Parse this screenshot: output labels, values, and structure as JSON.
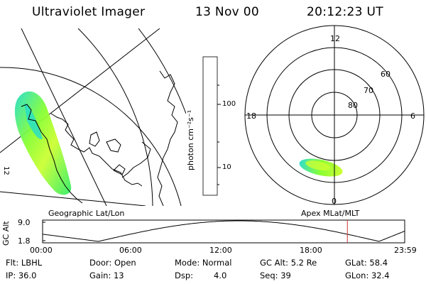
{
  "header": {
    "instrument": "Ultraviolet Imager",
    "date": "13 Nov 00",
    "time": "20:12:23 UT"
  },
  "left_map": {
    "caption": "Geographic Lat/Lon",
    "mark": "12"
  },
  "colorbar": {
    "label": "photon cm⁻²s⁻¹",
    "ticks": [
      "100",
      "10"
    ],
    "colors": [
      "#000000",
      "#2a0033",
      "#55006a",
      "#8b0030",
      "#cc0000",
      "#ff3300",
      "#ff8800",
      "#ffcc00",
      "#ffff33",
      "#ccff33",
      "#88ff33",
      "#33ee66",
      "#22ddcc",
      "#bbeeff",
      "#ffffff"
    ]
  },
  "polar": {
    "caption": "Apex MLat/MLT",
    "mlt_labels": {
      "top": "12",
      "left": "18",
      "right": "6",
      "bottom": "0"
    },
    "lat_labels": [
      "60",
      "70",
      "80"
    ]
  },
  "altitude_plot": {
    "ylabel": "GC Alt",
    "yticks": [
      "9.0",
      "1.8"
    ],
    "xticks": [
      "00:00",
      "06:00",
      "12:00",
      "18:00",
      "23:59"
    ],
    "current_time_hours": 20.2
  },
  "info": {
    "filter": "Flt: LBHL",
    "door": "Door: Open",
    "mode": "Mode: Normal",
    "gc_alt": "GC Alt: 5.2 Re",
    "glat": "GLat: 58.4",
    "ip": "IP: 36.0",
    "gain": "Gain: 13",
    "dsp_label": "Dsp:",
    "dsp_value": "4.0",
    "seq": "Seq: 39",
    "glon": "GLon: 32.4"
  }
}
